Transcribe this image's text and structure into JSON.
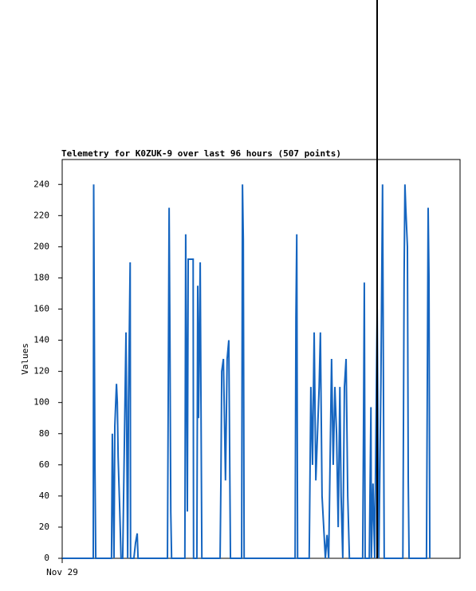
{
  "chart_data": {
    "type": "line",
    "title": "Telemetry for K0ZUK-9 over last 96 hours (507 points)",
    "y_label": "Values",
    "xlim": [
      0,
      96
    ],
    "xticks": [
      {
        "value": 0,
        "label": "Nov 29"
      }
    ],
    "ylim": [
      0,
      256
    ],
    "yticks": [
      0,
      20,
      40,
      60,
      80,
      100,
      120,
      140,
      160,
      180,
      200,
      220,
      240
    ],
    "series": [
      {
        "color": "#1565c0",
        "x": [
          0,
          7.5,
          7.6,
          7.7,
          7.9,
          8.1,
          11.9,
          12.0,
          12.1,
          12.3,
          12.5,
          12.7,
          13.1,
          13.3,
          13.5,
          13.9,
          14.2,
          14.6,
          15.4,
          15.6,
          15.8,
          16.0,
          16.4,
          16.5,
          17.3,
          17.7,
          18.1,
          18.3,
          25.4,
          25.6,
          25.8,
          26.0,
          26.2,
          26.4,
          29.6,
          29.8,
          30.2,
          30.4,
          31.6,
          31.7,
          32.5,
          32.7,
          32.9,
          33.3,
          33.5,
          33.7,
          38.1,
          38.3,
          38.5,
          38.9,
          39.4,
          39.8,
          40.2,
          40.6,
          43.3,
          43.5,
          43.7,
          43.9,
          56.2,
          56.4,
          56.6,
          56.8,
          59.6,
          60.0,
          60.4,
          60.8,
          61.2,
          61.6,
          62.0,
          62.3,
          62.7,
          63.1,
          63.5,
          63.9,
          64.3,
          65.0,
          65.4,
          65.8,
          66.2,
          66.6,
          67.0,
          67.3,
          67.7,
          68.1,
          68.5,
          68.9,
          69.3,
          72.5,
          72.7,
          72.9,
          73.1,
          74.1,
          74.5,
          74.6,
          75.0,
          75.4,
          76.0,
          76.4,
          76.9,
          77.3,
          77.5,
          77.7,
          82.2,
          82.5,
          82.7,
          82.9,
          83.3,
          83.5,
          83.7,
          87.9,
          88.1,
          88.3,
          88.5,
          88.7
        ],
        "values": [
          0,
          0,
          240,
          180,
          60,
          0,
          0,
          40,
          80,
          40,
          0,
          85,
          112,
          100,
          65,
          30,
          0,
          0,
          145,
          70,
          0,
          100,
          190,
          0,
          0,
          10,
          16,
          0,
          0,
          110,
          225,
          140,
          30,
          0,
          0,
          208,
          30,
          192,
          192,
          0,
          0,
          175,
          90,
          190,
          95,
          0,
          0,
          50,
          120,
          128,
          50,
          128,
          140,
          0,
          0,
          240,
          205,
          0,
          0,
          155,
          208,
          0,
          0,
          110,
          60,
          145,
          50,
          80,
          110,
          145,
          40,
          20,
          0,
          15,
          0,
          128,
          60,
          110,
          80,
          20,
          110,
          40,
          0,
          110,
          128,
          40,
          0,
          0,
          80,
          177,
          0,
          0,
          97,
          0,
          48,
          0,
          160,
          0,
          112,
          240,
          120,
          0,
          0,
          180,
          240,
          225,
          200,
          50,
          0,
          0,
          110,
          225,
          180,
          0
        ]
      }
    ]
  }
}
